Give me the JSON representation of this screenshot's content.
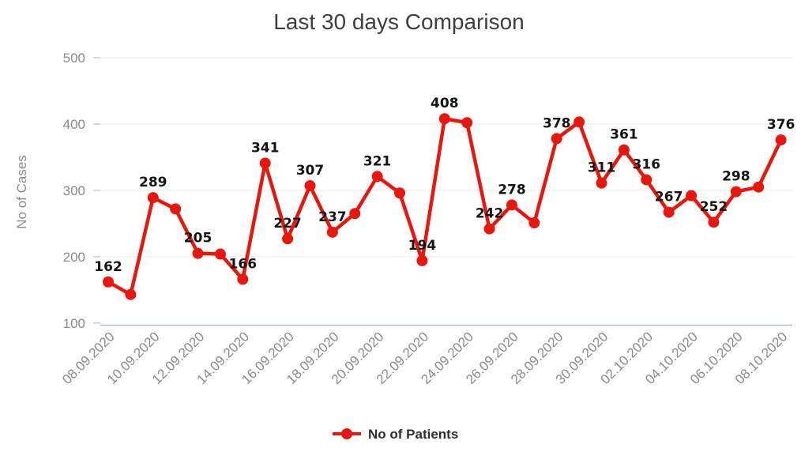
{
  "title": "Last 30 days Comparison",
  "colors": {
    "series_red": "#e8160c",
    "grid_line": "#eaeaea",
    "axis_line": "#a9bdd6",
    "tick_mark": "#cccccc",
    "tick_text": "#8a8a8a",
    "title_text": "#3f3f3f",
    "point_label_text": "#141414",
    "legend_text": "#2e2e2e",
    "background": "#ffffff"
  },
  "legend": {
    "label": "No of Patients"
  },
  "chart_data": {
    "type": "line",
    "title": "Last 30 days Comparison",
    "xlabel": "",
    "ylabel": "No of Cases",
    "ylim": [
      100,
      500
    ],
    "yticks": [
      100,
      200,
      300,
      400,
      500
    ],
    "grid": true,
    "legend_position": "bottom",
    "x_ticks_every_n_points": 2,
    "x_tick_labels": [
      "08.09.2020",
      "10.09.2020",
      "12.09.2020",
      "14.09.2020",
      "16.09.2020",
      "18.09.2020",
      "20.09.2020",
      "22.09.2020",
      "24.09.2020",
      "26.09.2020",
      "28.09.2020",
      "30.09.2020",
      "02.10.2020",
      "04.10.2020",
      "06.10.2020",
      "08.10.2020"
    ],
    "series": [
      {
        "name": "No of Patients",
        "color": "#e8160c",
        "marker": "circle",
        "values": [
          162,
          143,
          289,
          272,
          205,
          204,
          166,
          341,
          227,
          307,
          237,
          265,
          321,
          296,
          194,
          408,
          402,
          242,
          278,
          251,
          378,
          403,
          311,
          361,
          316,
          267,
          292,
          252,
          298,
          305,
          376
        ],
        "point_labels": [
          "162",
          "",
          "289",
          "",
          "205",
          "",
          "166",
          "341",
          "227",
          "307",
          "237",
          "",
          "321",
          "",
          "194",
          "408",
          "",
          "242",
          "278",
          "",
          "378",
          "",
          "311",
          "361",
          "316",
          "267",
          "",
          "252",
          "298",
          "",
          "376"
        ]
      }
    ]
  }
}
